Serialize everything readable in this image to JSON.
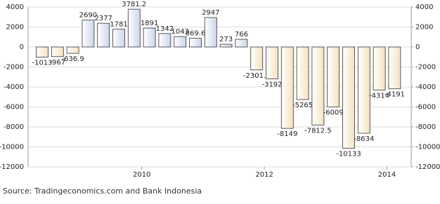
{
  "chart_data": {
    "type": "bar",
    "categories": [
      null,
      null,
      null,
      null,
      null,
      null,
      null,
      null,
      null,
      null,
      null,
      null,
      null,
      null,
      null,
      null,
      null,
      null,
      null,
      null,
      null,
      null,
      null,
      null
    ],
    "values": [
      -1013,
      -967,
      -636.9,
      2690,
      2377,
      1781,
      3781.2,
      1891,
      1342,
      1043,
      869.6,
      2947,
      273,
      766,
      -2301.3,
      -3192,
      -8149,
      -5265,
      -7812.5,
      -6009,
      -10133,
      -8634,
      -4314,
      -4191
    ],
    "positive_color": "#c9d6ea",
    "negative_color": "#f3e2c0",
    "xticks": [
      "2010",
      "2012",
      "2014"
    ],
    "ylim": [
      -12000,
      4000
    ],
    "yticks": [
      -12000,
      -10000,
      -8000,
      -6000,
      -4000,
      -2000,
      0,
      2000,
      4000
    ],
    "y2lim": [
      -12000,
      4000
    ],
    "y2ticks": [
      -12000,
      -10000,
      -8000,
      -6000,
      -4000,
      -2000,
      0,
      2000,
      4000
    ],
    "grid": true,
    "source": "Source: Tradingeconomics.com and Bank Indonesia"
  }
}
